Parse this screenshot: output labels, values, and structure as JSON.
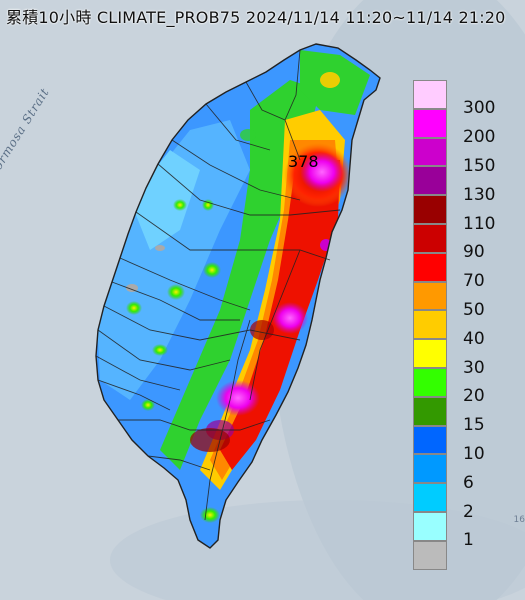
{
  "title": "累積10小時 CLIMATE_PROB75 2024/11/14 11:20~11/14 21:20",
  "map_labels": {
    "strait": "Formosa Strait",
    "max_value": "378",
    "edge_number": "16"
  },
  "legend": [
    {
      "label": "300",
      "color": "#ffccff"
    },
    {
      "label": "200",
      "color": "#ff00ff"
    },
    {
      "label": "150",
      "color": "#cc00cc"
    },
    {
      "label": "130",
      "color": "#990099"
    },
    {
      "label": "110",
      "color": "#990000"
    },
    {
      "label": "90",
      "color": "#cc0000"
    },
    {
      "label": "70",
      "color": "#ff0000"
    },
    {
      "label": "50",
      "color": "#ff9900"
    },
    {
      "label": "40",
      "color": "#ffcc00"
    },
    {
      "label": "30",
      "color": "#ffff00"
    },
    {
      "label": "20",
      "color": "#33ff00"
    },
    {
      "label": "15",
      "color": "#339900"
    },
    {
      "label": "10",
      "color": "#0066ff"
    },
    {
      "label": "6",
      "color": "#0099ff"
    },
    {
      "label": "2",
      "color": "#00ccff"
    },
    {
      "label": "1",
      "color": "#99ffff"
    },
    {
      "label": "",
      "color": "#bbbbbb"
    }
  ],
  "colors": {
    "sea": "#c9d3dc",
    "land_low": "#3c97ff",
    "land_mid": "#1fd61f",
    "land_high": "#e00000",
    "peak": "#e010e0",
    "border": "#222222"
  }
}
